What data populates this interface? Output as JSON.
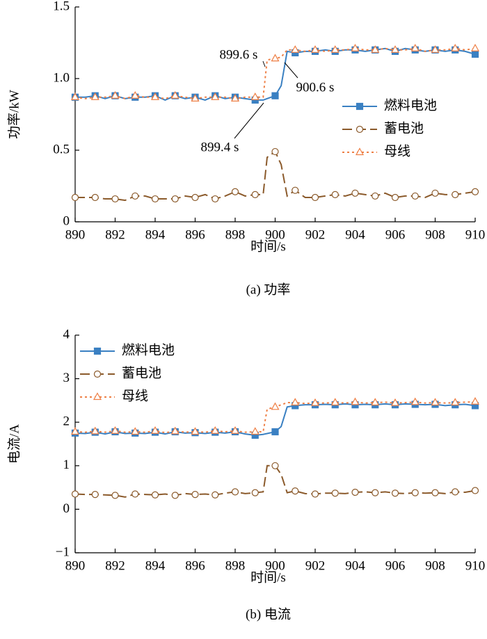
{
  "chart_data": [
    {
      "type": "line",
      "ylabel": "功率/kW",
      "xlabel": "时间/s",
      "caption": "(a)  功率",
      "x": [
        890,
        890.5,
        891,
        891.5,
        892,
        892.5,
        893,
        893.5,
        894,
        894.5,
        895,
        895.5,
        896,
        896.5,
        897,
        897.5,
        898,
        898.5,
        899,
        899.4,
        899.6,
        900,
        900.3,
        900.6,
        901,
        901.5,
        902,
        902.5,
        903,
        903.5,
        904,
        904.5,
        905,
        905.5,
        906,
        906.5,
        907,
        907.5,
        908,
        908.5,
        909,
        909.5,
        910
      ],
      "series": [
        {
          "name": "燃料电池",
          "color": "#3a80c2",
          "marker": "square",
          "dash": "solid",
          "values": [
            0.87,
            0.87,
            0.88,
            0.86,
            0.88,
            0.86,
            0.87,
            0.87,
            0.88,
            0.85,
            0.88,
            0.86,
            0.87,
            0.85,
            0.88,
            0.86,
            0.87,
            0.86,
            0.85,
            0.85,
            0.86,
            0.88,
            0.95,
            1.19,
            1.18,
            1.19,
            1.19,
            1.2,
            1.19,
            1.2,
            1.2,
            1.19,
            1.2,
            1.21,
            1.19,
            1.21,
            1.2,
            1.19,
            1.2,
            1.19,
            1.2,
            1.19,
            1.17
          ]
        },
        {
          "name": "蓄电池",
          "color": "#8b5a2b",
          "marker": "circle",
          "dash": "long-dash",
          "values": [
            0.17,
            0.17,
            0.17,
            0.16,
            0.16,
            0.15,
            0.18,
            0.18,
            0.16,
            0.16,
            0.16,
            0.18,
            0.17,
            0.19,
            0.16,
            0.18,
            0.21,
            0.18,
            0.19,
            0.19,
            0.45,
            0.49,
            0.4,
            0.18,
            0.22,
            0.17,
            0.17,
            0.18,
            0.19,
            0.18,
            0.2,
            0.19,
            0.18,
            0.2,
            0.17,
            0.18,
            0.18,
            0.17,
            0.2,
            0.19,
            0.19,
            0.2,
            0.21
          ]
        },
        {
          "name": "母线",
          "color": "#ee7f45",
          "marker": "triangle",
          "dash": "dot",
          "values": [
            0.87,
            0.86,
            0.87,
            0.87,
            0.88,
            0.86,
            0.88,
            0.87,
            0.87,
            0.86,
            0.88,
            0.87,
            0.86,
            0.87,
            0.87,
            0.87,
            0.86,
            0.87,
            0.87,
            0.87,
            1.13,
            1.14,
            1.15,
            1.2,
            1.2,
            1.19,
            1.2,
            1.19,
            1.2,
            1.2,
            1.21,
            1.2,
            1.2,
            1.21,
            1.2,
            1.2,
            1.21,
            1.19,
            1.2,
            1.2,
            1.21,
            1.2,
            1.21
          ]
        }
      ],
      "xlim": [
        890,
        910
      ],
      "xticks": [
        890,
        892,
        894,
        896,
        898,
        900,
        902,
        904,
        906,
        908,
        910
      ],
      "ylim": [
        0,
        1.5
      ],
      "yticks": [
        0,
        0.5,
        {
          "value": 1,
          "label": "1.0"
        },
        1.5
      ],
      "legend": "center right",
      "annotations": [
        {
          "text": "899.6 s"
        },
        {
          "text": "900.6 s"
        },
        {
          "text": "899.4 s"
        }
      ]
    },
    {
      "type": "line",
      "ylabel": "电流/A",
      "xlabel": "时间/s",
      "caption": "(b)  电流",
      "x": [
        890,
        890.5,
        891,
        891.5,
        892,
        892.5,
        893,
        893.5,
        894,
        894.5,
        895,
        895.5,
        896,
        896.5,
        897,
        897.5,
        898,
        898.5,
        899,
        899.4,
        899.6,
        900,
        900.3,
        900.6,
        901,
        901.5,
        902,
        902.5,
        903,
        903.5,
        904,
        904.5,
        905,
        905.5,
        906,
        906.5,
        907,
        907.5,
        908,
        908.5,
        909,
        909.5,
        910
      ],
      "series": [
        {
          "name": "燃料电池",
          "color": "#3a80c2",
          "marker": "square",
          "dash": "solid",
          "values": [
            1.75,
            1.74,
            1.77,
            1.73,
            1.78,
            1.74,
            1.75,
            1.74,
            1.77,
            1.73,
            1.78,
            1.75,
            1.76,
            1.74,
            1.77,
            1.75,
            1.78,
            1.73,
            1.7,
            1.72,
            1.74,
            1.78,
            1.9,
            2.35,
            2.38,
            2.4,
            2.4,
            2.41,
            2.4,
            2.42,
            2.4,
            2.41,
            2.4,
            2.42,
            2.4,
            2.42,
            2.41,
            2.4,
            2.41,
            2.38,
            2.4,
            2.41,
            2.38
          ]
        },
        {
          "name": "蓄电池",
          "color": "#8b5a2b",
          "marker": "circle",
          "dash": "long-dash",
          "values": [
            0.35,
            0.34,
            0.34,
            0.33,
            0.32,
            0.28,
            0.35,
            0.34,
            0.33,
            0.35,
            0.32,
            0.36,
            0.34,
            0.35,
            0.33,
            0.37,
            0.4,
            0.36,
            0.38,
            0.4,
            1.0,
            1.0,
            0.8,
            0.38,
            0.42,
            0.36,
            0.35,
            0.37,
            0.37,
            0.36,
            0.39,
            0.4,
            0.38,
            0.4,
            0.37,
            0.36,
            0.38,
            0.37,
            0.38,
            0.36,
            0.4,
            0.39,
            0.43
          ]
        },
        {
          "name": "母线",
          "color": "#ee7f45",
          "marker": "triangle",
          "dash": "dot",
          "values": [
            1.78,
            1.77,
            1.79,
            1.77,
            1.8,
            1.77,
            1.78,
            1.77,
            1.8,
            1.76,
            1.79,
            1.77,
            1.78,
            1.77,
            1.8,
            1.78,
            1.8,
            1.77,
            1.78,
            1.78,
            2.3,
            2.35,
            2.4,
            2.45,
            2.45,
            2.43,
            2.44,
            2.44,
            2.45,
            2.44,
            2.46,
            2.44,
            2.45,
            2.46,
            2.44,
            2.45,
            2.46,
            2.44,
            2.45,
            2.44,
            2.45,
            2.46,
            2.47
          ]
        }
      ],
      "xlim": [
        890,
        910
      ],
      "xticks": [
        890,
        892,
        894,
        896,
        898,
        900,
        902,
        904,
        906,
        908,
        910
      ],
      "ylim": [
        -1,
        4
      ],
      "yticks": [
        {
          "value": -1,
          "label": "−1"
        },
        0,
        1,
        2,
        3,
        4
      ],
      "legend": "upper left"
    }
  ]
}
